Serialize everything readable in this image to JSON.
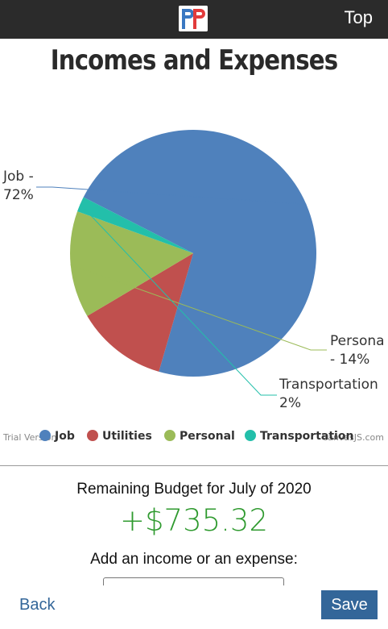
{
  "header": {
    "logo_alt": "PP",
    "top_link": "Top"
  },
  "page_title": "Incomes and Expenses",
  "chart_data": {
    "type": "pie",
    "slices": [
      {
        "name": "Job",
        "value": 72,
        "color": "#4f81bc"
      },
      {
        "name": "Utilities",
        "value": 12,
        "color": "#c0504e"
      },
      {
        "name": "Personal",
        "value": 14,
        "color": "#9bbb58"
      },
      {
        "name": "Transportation",
        "value": 2,
        "color": "#23bfaa"
      }
    ],
    "index_labels": [
      {
        "slice": "Job",
        "line1": "Job -",
        "line2": "72%"
      },
      {
        "slice": "Personal",
        "line1": "Persona",
        "line2": "- 14%"
      },
      {
        "slice": "Transportation",
        "line1": "Transportation",
        "line2": "2%"
      }
    ],
    "legend_placement": "bottom",
    "legend": [
      "Job",
      "Utilities",
      "Personal",
      "Transportation"
    ],
    "watermark_left": "Trial Version",
    "watermark_right": "CanvasJS.com"
  },
  "budget": {
    "label": "Remaining Budget for July of 2020",
    "amount": "+$735.32",
    "amount_color": "#2f9a2f"
  },
  "add_entry": {
    "label": "Add an income or an expense:"
  },
  "footer": {
    "back_label": "Back",
    "save_label": "Save"
  }
}
